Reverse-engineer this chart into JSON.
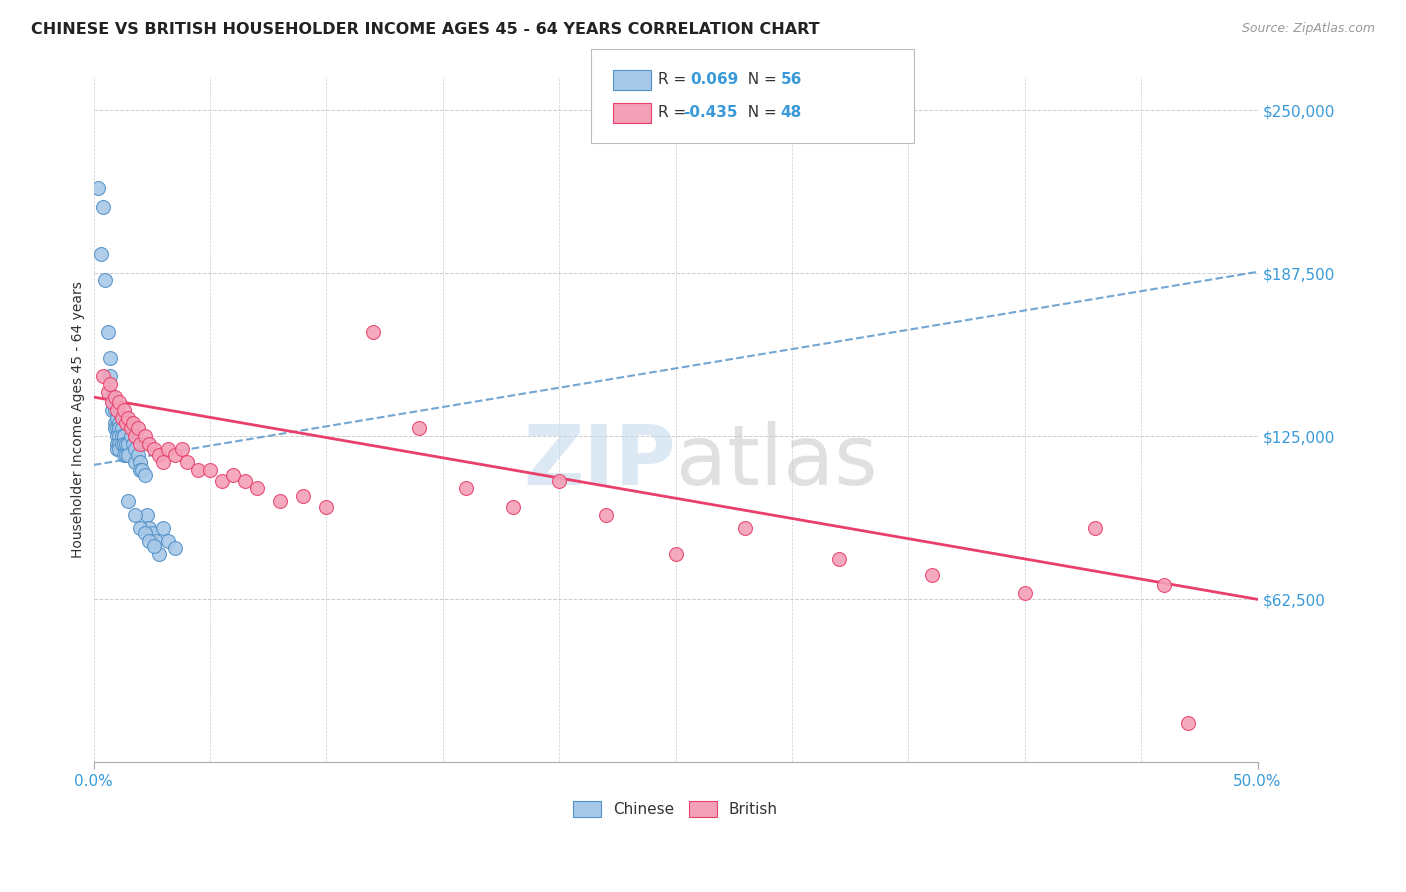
{
  "title": "CHINESE VS BRITISH HOUSEHOLDER INCOME AGES 45 - 64 YEARS CORRELATION CHART",
  "source": "Source: ZipAtlas.com",
  "ylabel": "Householder Income Ages 45 - 64 years",
  "xlim": [
    0.0,
    0.5
  ],
  "ylim": [
    0,
    262500
  ],
  "yticks": [
    0,
    62500,
    125000,
    187500,
    250000
  ],
  "ytick_labels": [
    "",
    "$62,500",
    "$125,000",
    "$187,500",
    "$250,000"
  ],
  "xtick_labels": [
    "0.0%",
    "50.0%"
  ],
  "chinese_color": "#a8c8e8",
  "british_color": "#f4a0b8",
  "chinese_line_color": "#5090c8",
  "british_line_color": "#e8406a",
  "legend_label_chinese": "Chinese",
  "legend_label_british": "British",
  "chinese_x": [
    0.002,
    0.004,
    0.003,
    0.005,
    0.006,
    0.007,
    0.007,
    0.008,
    0.008,
    0.009,
    0.009,
    0.009,
    0.01,
    0.01,
    0.01,
    0.01,
    0.01,
    0.011,
    0.011,
    0.011,
    0.011,
    0.011,
    0.012,
    0.012,
    0.012,
    0.013,
    0.013,
    0.013,
    0.014,
    0.014,
    0.015,
    0.015,
    0.016,
    0.016,
    0.017,
    0.018,
    0.018,
    0.019,
    0.02,
    0.02,
    0.021,
    0.022,
    0.023,
    0.024,
    0.025,
    0.027,
    0.028,
    0.03,
    0.032,
    0.035,
    0.015,
    0.018,
    0.02,
    0.022,
    0.024,
    0.026
  ],
  "chinese_y": [
    220000,
    213000,
    195000,
    185000,
    165000,
    155000,
    148000,
    140000,
    135000,
    135000,
    130000,
    128000,
    132000,
    128000,
    125000,
    122000,
    120000,
    130000,
    128000,
    125000,
    122000,
    120000,
    128000,
    125000,
    122000,
    125000,
    122000,
    118000,
    122000,
    118000,
    122000,
    118000,
    130000,
    125000,
    122000,
    120000,
    115000,
    118000,
    115000,
    112000,
    112000,
    110000,
    95000,
    90000,
    88000,
    85000,
    80000,
    90000,
    85000,
    82000,
    100000,
    95000,
    90000,
    88000,
    85000,
    83000
  ],
  "british_x": [
    0.004,
    0.006,
    0.007,
    0.008,
    0.009,
    0.01,
    0.011,
    0.012,
    0.013,
    0.014,
    0.015,
    0.016,
    0.017,
    0.018,
    0.019,
    0.02,
    0.022,
    0.024,
    0.026,
    0.028,
    0.03,
    0.032,
    0.035,
    0.038,
    0.04,
    0.045,
    0.05,
    0.055,
    0.06,
    0.065,
    0.07,
    0.08,
    0.09,
    0.1,
    0.12,
    0.14,
    0.16,
    0.18,
    0.2,
    0.22,
    0.25,
    0.28,
    0.32,
    0.36,
    0.4,
    0.43,
    0.46,
    0.47
  ],
  "british_y": [
    148000,
    142000,
    145000,
    138000,
    140000,
    135000,
    138000,
    132000,
    135000,
    130000,
    132000,
    128000,
    130000,
    125000,
    128000,
    122000,
    125000,
    122000,
    120000,
    118000,
    115000,
    120000,
    118000,
    120000,
    115000,
    112000,
    112000,
    108000,
    110000,
    108000,
    105000,
    100000,
    102000,
    98000,
    165000,
    128000,
    105000,
    98000,
    108000,
    95000,
    80000,
    90000,
    78000,
    72000,
    65000,
    90000,
    68000,
    15000
  ]
}
